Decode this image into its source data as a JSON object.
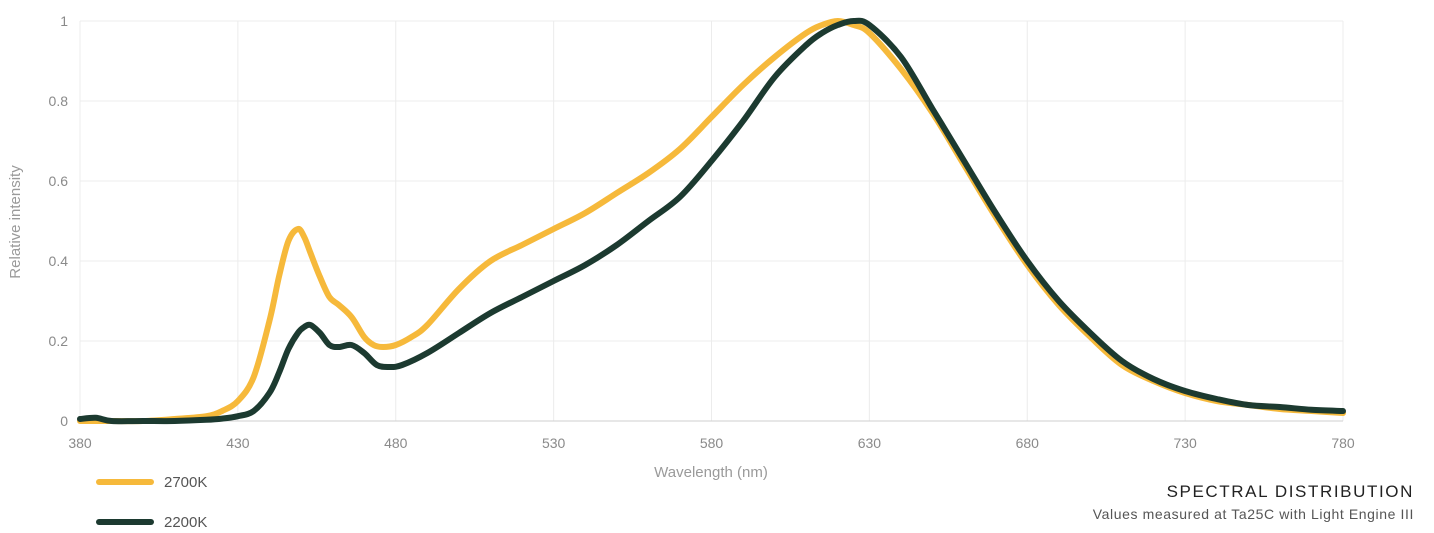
{
  "chart_data": {
    "type": "line",
    "title": "SPECTRAL DISTRIBUTION",
    "subtitle": "Values measured at Ta25C with Light Engine III",
    "xlabel": "Wavelength (nm)",
    "ylabel": "Relative intensity",
    "xlim": [
      380,
      780
    ],
    "ylim": [
      0,
      1
    ],
    "xticks": [
      380,
      430,
      480,
      530,
      580,
      630,
      680,
      730,
      780
    ],
    "yticks": [
      0,
      0.2,
      0.4,
      0.6,
      0.8,
      1
    ],
    "ytick_labels": [
      "0",
      "0.2",
      "0.4",
      "0.6",
      "0.8",
      "1"
    ],
    "grid": true,
    "legend_position": "bottom-left",
    "series": [
      {
        "name": "2700K",
        "color": "#f6b93b",
        "x": [
          380,
          390,
          400,
          410,
          420,
          425,
          430,
          435,
          440,
          443,
          446,
          449,
          451,
          453,
          456,
          459,
          462,
          466,
          470,
          473,
          476,
          480,
          485,
          490,
          500,
          510,
          520,
          530,
          540,
          550,
          560,
          570,
          580,
          590,
          600,
          610,
          615,
          620,
          625,
          630,
          640,
          650,
          660,
          670,
          680,
          690,
          700,
          710,
          720,
          730,
          740,
          750,
          760,
          770,
          780
        ],
        "values": [
          0.0,
          0.0,
          0.0,
          0.005,
          0.012,
          0.025,
          0.05,
          0.11,
          0.25,
          0.36,
          0.45,
          0.48,
          0.46,
          0.42,
          0.36,
          0.31,
          0.29,
          0.26,
          0.21,
          0.19,
          0.185,
          0.19,
          0.21,
          0.24,
          0.33,
          0.4,
          0.44,
          0.48,
          0.52,
          0.57,
          0.62,
          0.68,
          0.76,
          0.84,
          0.91,
          0.97,
          0.99,
          1.0,
          0.99,
          0.97,
          0.88,
          0.77,
          0.64,
          0.51,
          0.39,
          0.29,
          0.21,
          0.14,
          0.1,
          0.07,
          0.05,
          0.04,
          0.03,
          0.025,
          0.02
        ]
      },
      {
        "name": "2200K",
        "color": "#1c3a30",
        "x": [
          380,
          385,
          390,
          400,
          410,
          420,
          425,
          430,
          435,
          440,
          443,
          446,
          449,
          451,
          453,
          456,
          459,
          462,
          466,
          470,
          474,
          478,
          482,
          490,
          500,
          510,
          520,
          530,
          540,
          550,
          560,
          570,
          580,
          590,
          600,
          610,
          615,
          620,
          625,
          630,
          640,
          650,
          660,
          670,
          680,
          690,
          700,
          710,
          720,
          730,
          740,
          750,
          760,
          770,
          780
        ],
        "values": [
          0.005,
          0.008,
          0.0,
          0.0,
          0.0,
          0.003,
          0.006,
          0.012,
          0.025,
          0.07,
          0.12,
          0.18,
          0.22,
          0.235,
          0.24,
          0.22,
          0.19,
          0.185,
          0.19,
          0.17,
          0.14,
          0.135,
          0.14,
          0.17,
          0.22,
          0.27,
          0.31,
          0.35,
          0.39,
          0.44,
          0.5,
          0.56,
          0.65,
          0.75,
          0.86,
          0.94,
          0.97,
          0.99,
          1.0,
          0.99,
          0.91,
          0.78,
          0.65,
          0.52,
          0.4,
          0.3,
          0.22,
          0.15,
          0.105,
          0.075,
          0.055,
          0.04,
          0.035,
          0.028,
          0.025
        ]
      }
    ]
  }
}
